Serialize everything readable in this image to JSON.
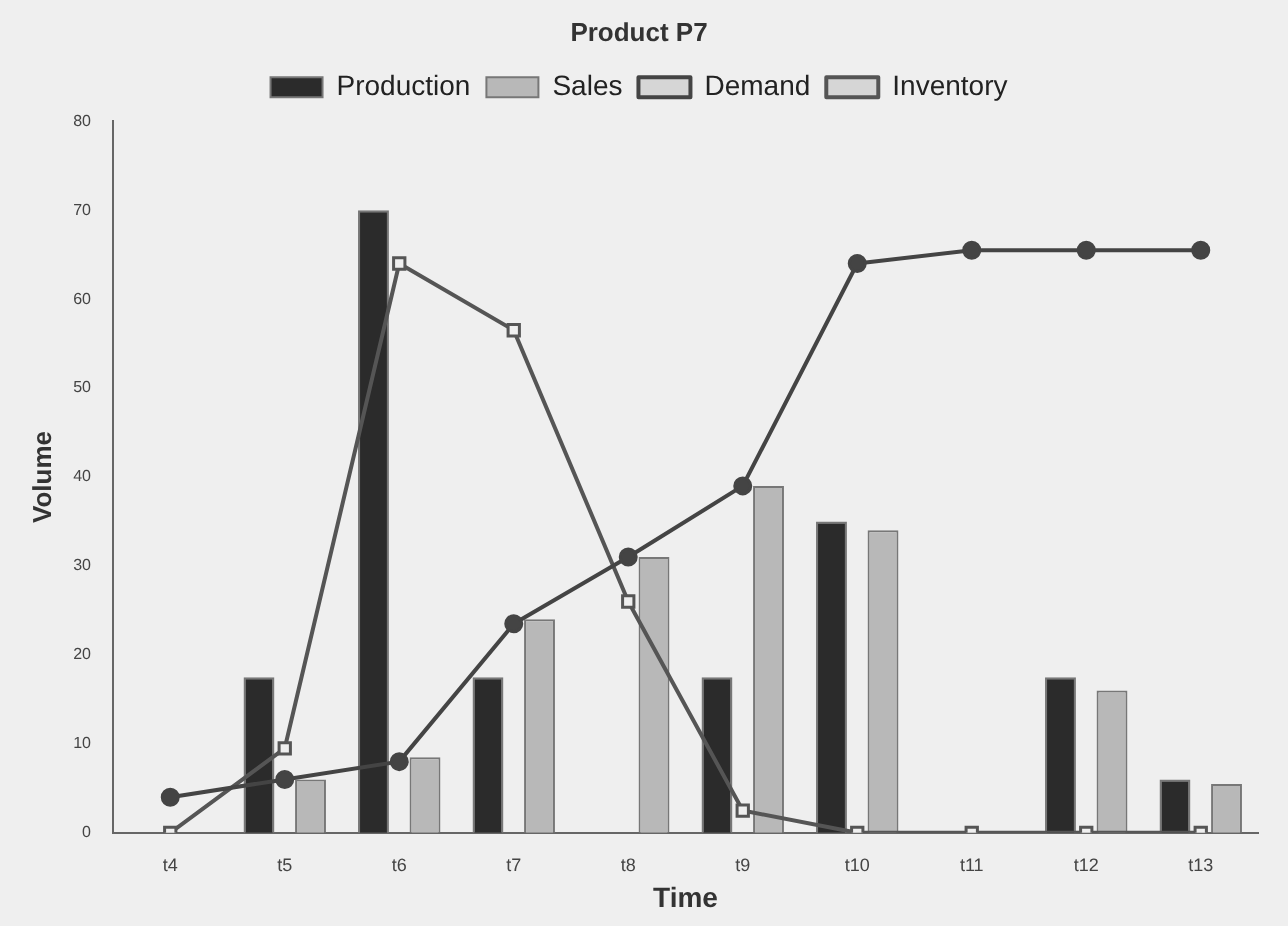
{
  "chart_data": {
    "type": "bar",
    "title": "Product P7",
    "xlabel": "Time",
    "ylabel": "Volume",
    "categories": [
      "t4",
      "t5",
      "t6",
      "t7",
      "t8",
      "t9",
      "t10",
      "t11",
      "t12",
      "t13"
    ],
    "series": [
      {
        "name": "Production",
        "color": "#2b2b2b",
        "values": [
          0,
          17.5,
          70,
          17.5,
          0,
          17.5,
          35,
          0,
          17.5,
          6
        ]
      },
      {
        "name": "Sales",
        "color": "#b8b8b8",
        "values": [
          0,
          6,
          8.5,
          24,
          31,
          39,
          34,
          0,
          16,
          5.5
        ]
      },
      {
        "name": "Demand",
        "type": "line",
        "color": "#444444",
        "marker": "circle",
        "values": [
          4,
          6,
          8,
          23.5,
          31,
          39,
          64,
          65.5,
          65.5,
          65.5
        ]
      },
      {
        "name": "Inventory",
        "type": "line",
        "color": "#555555",
        "marker": "square",
        "values": [
          0,
          9.5,
          64,
          56.5,
          26,
          2.5,
          0,
          0,
          0,
          0
        ]
      }
    ],
    "ylim": [
      0,
      80
    ],
    "yticks": [
      0,
      10,
      20,
      30,
      40,
      50,
      60,
      70,
      80
    ],
    "grid": false,
    "legend": "top"
  }
}
